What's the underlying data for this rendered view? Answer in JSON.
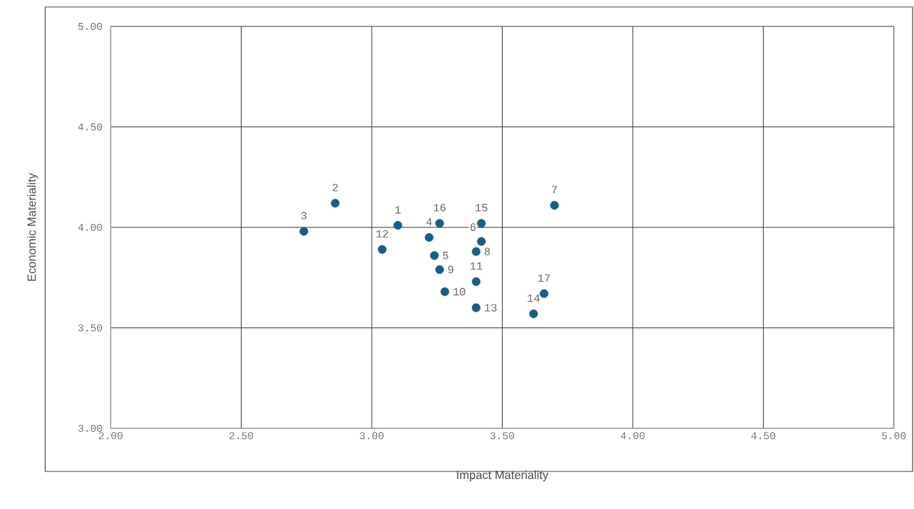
{
  "chart_data": {
    "type": "scatter",
    "xlabel": "Impact Materiality",
    "ylabel": "Economic Materiality",
    "x": [
      3.1,
      2.86,
      2.74,
      3.22,
      3.24,
      3.42,
      3.7,
      3.4,
      3.26,
      3.28,
      3.4,
      3.04,
      3.4,
      3.62,
      3.42,
      3.26,
      3.66
    ],
    "values": [
      4.01,
      4.12,
      3.98,
      3.95,
      3.86,
      3.93,
      4.11,
      3.88,
      3.79,
      3.68,
      3.73,
      3.89,
      3.6,
      3.57,
      4.02,
      4.02,
      3.67
    ],
    "color": "#1b5e82",
    "grid": true,
    "xlim": [
      2,
      5
    ],
    "ylim": [
      3,
      5
    ],
    "xticks": [
      {
        "value": 2,
        "label": "2.00"
      },
      {
        "value": 2.5,
        "label": "2.50"
      },
      {
        "value": 3,
        "label": "3.00"
      },
      {
        "value": 3.5,
        "label": "3.50"
      },
      {
        "value": 4,
        "label": "4.00"
      },
      {
        "value": 4.5,
        "label": "4.50"
      },
      {
        "value": 5,
        "label": "5.00"
      }
    ],
    "yticks": [
      {
        "value": 3,
        "label": "3.00"
      },
      {
        "value": 3.5,
        "label": "3.50"
      },
      {
        "value": 4,
        "label": "4.00"
      },
      {
        "value": 4.5,
        "label": "4.50"
      },
      {
        "value": 5,
        "label": "5.00"
      }
    ],
    "annotations": [
      {
        "text": "1",
        "x": 3.1,
        "y": 4.01
      },
      {
        "text": "2",
        "x": 2.86,
        "y": 4.12
      },
      {
        "text": "3",
        "x": 2.74,
        "y": 3.98
      },
      {
        "text": "4",
        "x": 3.22,
        "y": 3.95
      },
      {
        "text": "5",
        "x": 3.24,
        "y": 3.86
      },
      {
        "text": "6",
        "x": 3.42,
        "y": 3.93
      },
      {
        "text": "7",
        "x": 3.7,
        "y": 4.11
      },
      {
        "text": "8",
        "x": 3.4,
        "y": 3.88
      },
      {
        "text": "9",
        "x": 3.26,
        "y": 3.79
      },
      {
        "text": "10",
        "x": 3.28,
        "y": 3.68
      },
      {
        "text": "11",
        "x": 3.4,
        "y": 3.73
      },
      {
        "text": "12",
        "x": 3.04,
        "y": 3.89
      },
      {
        "text": "13",
        "x": 3.4,
        "y": 3.6
      },
      {
        "text": "14",
        "x": 3.62,
        "y": 3.57
      },
      {
        "text": "15",
        "x": 3.42,
        "y": 4.02
      },
      {
        "text": "16",
        "x": 3.26,
        "y": 4.02
      },
      {
        "text": "17",
        "x": 3.66,
        "y": 3.67
      }
    ]
  }
}
